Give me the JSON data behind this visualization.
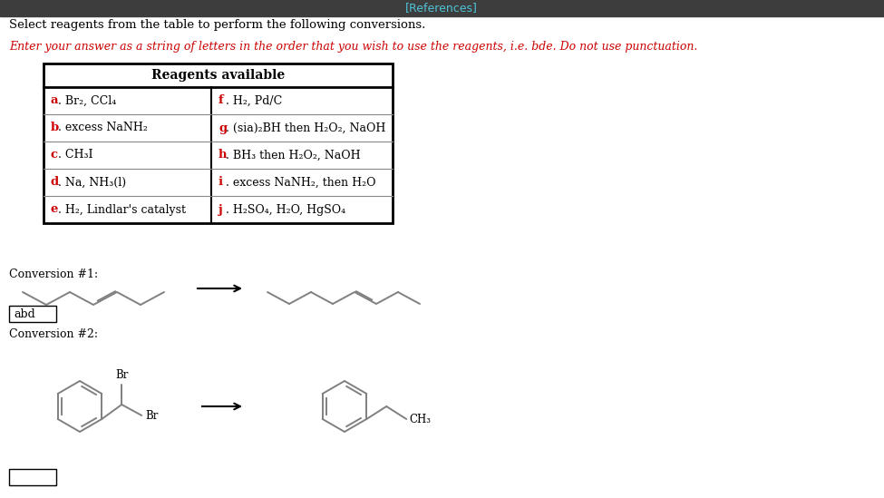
{
  "title_bar_text": "[References]",
  "title_bar_color": "#3d3d3d",
  "title_bar_text_color": "#4fc3d8",
  "main_text": "Select reagents from the table to perform the following conversions.",
  "red_instruction": "Enter your answer as a string of letters in the order that you wish to use the reagents, i.e. bde. Do not use punctuation.",
  "table_header": "Reagents available",
  "table_rows_left": [
    "a. Br₂, CCl₄",
    "b. excess NaNH₂",
    "c. CH₃I",
    "d. Na, NH₃(l)",
    "e. H₂, Lindlar's catalyst"
  ],
  "table_rows_right": [
    "f. H₂, Pd/C",
    "g. (sia)₂BH then H₂O₂, NaOH",
    "h. BH₃ then H₂O₂, NaOH",
    "i. excess NaNH₂, then H₂O",
    "j. H₂SO₄, H₂O, HgSO₄"
  ],
  "conversion1_label": "Conversion #1:",
  "conversion2_label": "Conversion #2:",
  "answer1": "abd",
  "background_color": "#ffffff",
  "text_color": "#000000",
  "red_color": "#cc0000",
  "molecule_color": "#808080"
}
